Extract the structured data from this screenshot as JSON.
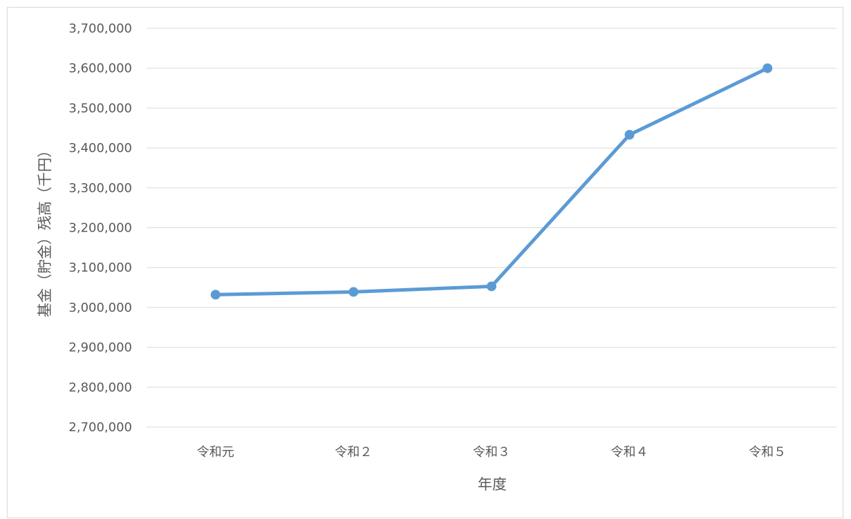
{
  "chart_data": {
    "type": "line",
    "title": "",
    "xlabel": "年度",
    "ylabel": "基金（貯金）残高（千円）",
    "categories": [
      "令和元",
      "令和２",
      "令和３",
      "令和４",
      "令和５"
    ],
    "series": [
      {
        "name": "",
        "values": [
          3032000,
          3039000,
          3053000,
          3433000,
          3600000
        ],
        "color": "#5b9bd5"
      }
    ],
    "ylim": [
      2700000,
      3700000
    ],
    "yticks": [
      2700000,
      2800000,
      2900000,
      3000000,
      3100000,
      3200000,
      3300000,
      3400000,
      3500000,
      3600000,
      3700000
    ],
    "ytick_labels": [
      "2,700,000",
      "2,800,000",
      "2,900,000",
      "3,000,000",
      "3,100,000",
      "3,200,000",
      "3,300,000",
      "3,400,000",
      "3,500,000",
      "3,600,000",
      "3,700,000"
    ],
    "grid": true,
    "legend": "none",
    "gridline_color": "#d9d9d9",
    "text_color": "#595959"
  }
}
